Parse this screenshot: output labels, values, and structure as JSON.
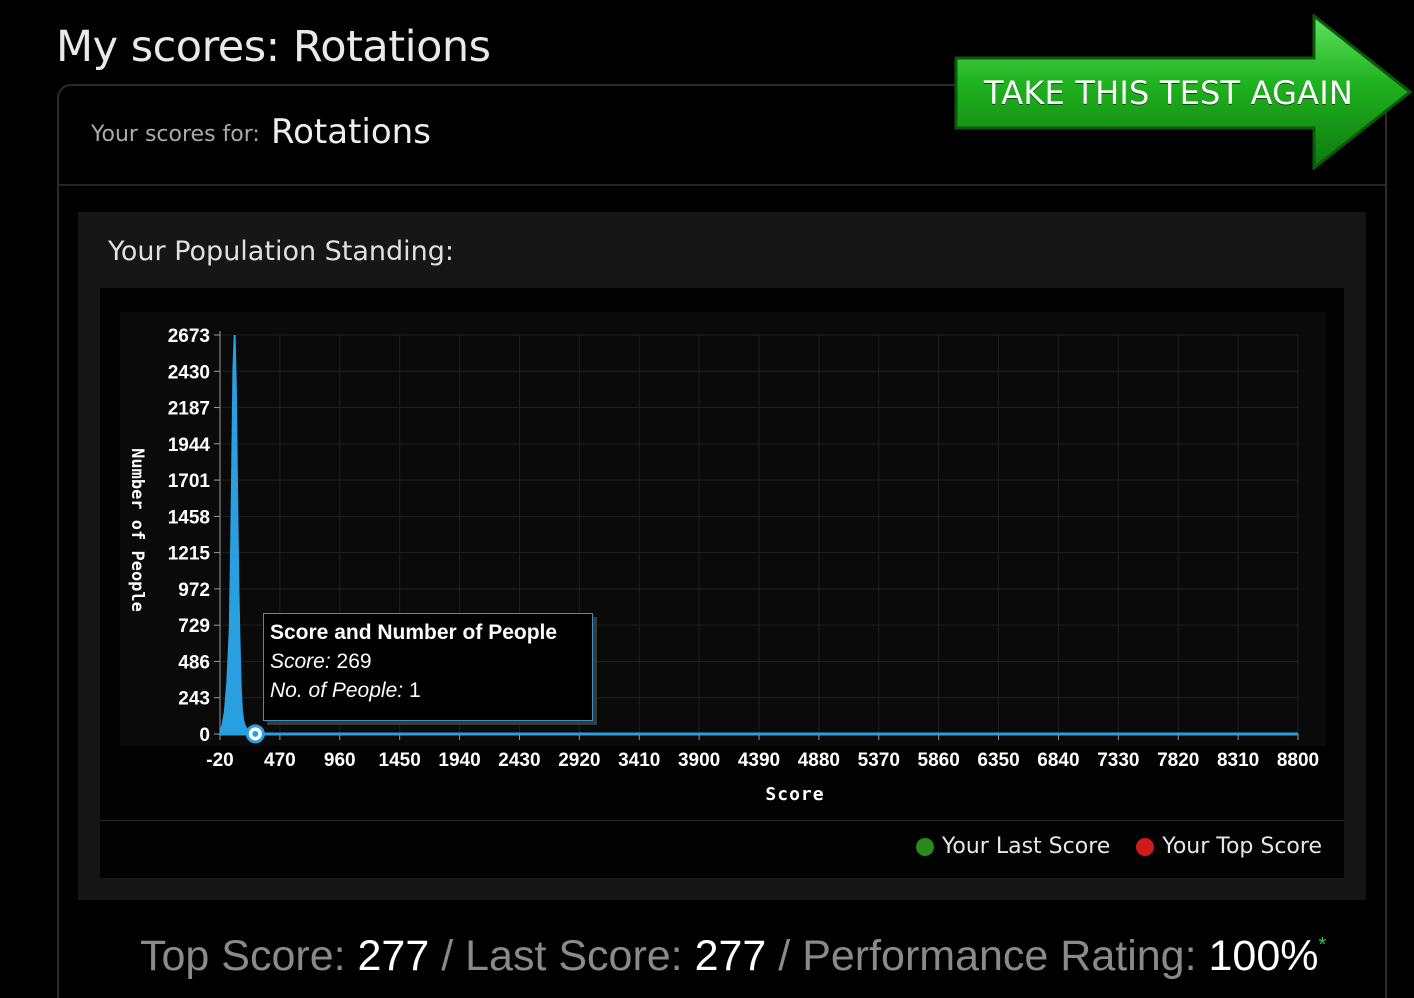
{
  "page": {
    "title": "My scores: Rotations"
  },
  "header": {
    "scores_for_label": "Your scores for:",
    "scores_for_value": "Rotations",
    "take_test_button": "TAKE THIS TEST AGAIN"
  },
  "standing": {
    "title": "Your Population Standing:"
  },
  "tooltip": {
    "title": "Score and Number of People",
    "score_label": "Score:",
    "score_value": "269",
    "people_label": "No. of People:",
    "people_value": "1"
  },
  "legend": {
    "last_score": "Your Last Score",
    "top_score": "Your Top Score"
  },
  "summary": {
    "top_label": "Top Score:",
    "top_value": "277",
    "last_label": "Last Score:",
    "last_value": "277",
    "rating_label": "Performance Rating:",
    "rating_value": "100%",
    "rating_mark": "*",
    "sep": "/"
  },
  "colors": {
    "series": "#2a9fdf",
    "last_score": "#2b8a1c",
    "top_score": "#d11a1a",
    "button_green": "#22b522"
  },
  "chart_data": {
    "type": "area",
    "xlabel": "Score",
    "ylabel": "Number of People",
    "xlim": [
      -20,
      8800
    ],
    "ylim": [
      0,
      2673
    ],
    "x_ticks": [
      -20,
      470,
      960,
      1450,
      1940,
      2430,
      2920,
      3410,
      3900,
      4390,
      4880,
      5370,
      5860,
      6350,
      6840,
      7330,
      7820,
      8310,
      8800
    ],
    "y_ticks": [
      0,
      243,
      486,
      729,
      972,
      1215,
      1458,
      1701,
      1944,
      2187,
      2430,
      2673
    ],
    "grid": true,
    "legend_position": "bottom-right",
    "series": [
      {
        "x": [
          -20,
          0,
          20,
          40,
          60,
          70,
          80,
          90,
          100,
          110,
          120,
          130,
          140,
          150,
          160,
          170,
          180,
          200,
          220,
          240,
          260,
          269,
          300,
          400,
          1000,
          8800
        ],
        "values": [
          0,
          60,
          150,
          350,
          700,
          1200,
          1800,
          2450,
          2673,
          2300,
          1600,
          1000,
          600,
          300,
          150,
          90,
          60,
          30,
          12,
          5,
          2,
          1,
          0,
          0,
          0,
          0
        ]
      }
    ],
    "highlight_point": {
      "x": 269,
      "y": 1
    }
  }
}
